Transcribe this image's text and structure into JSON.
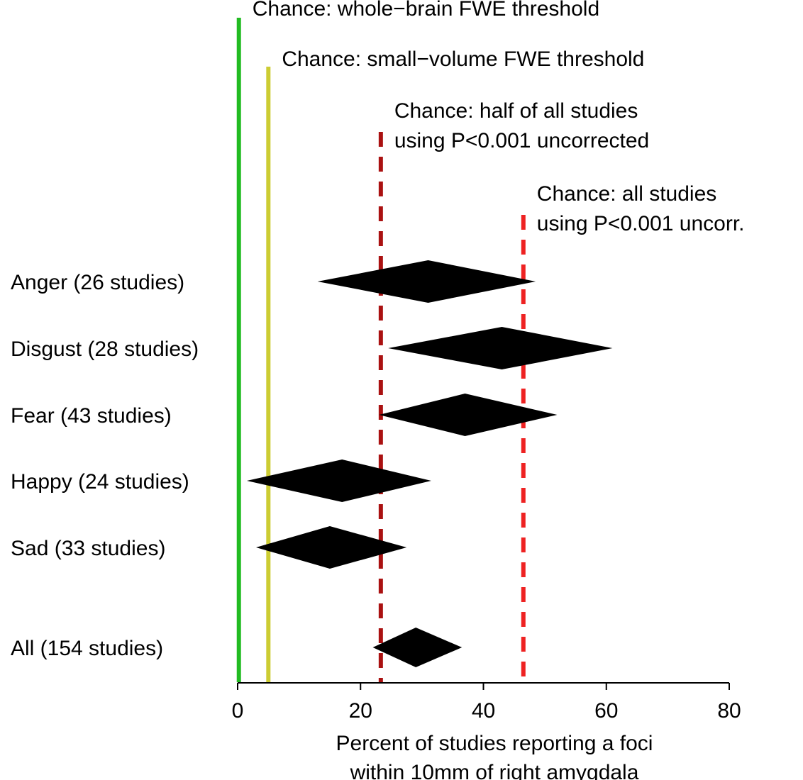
{
  "chart_data": {
    "type": "forest",
    "xlabel": [
      "Percent of studies reporting a foci",
      "within 10mm of right amygdala"
    ],
    "xlim": [
      0,
      80
    ],
    "xticks": [
      0,
      20,
      40,
      60,
      80
    ],
    "categories": [
      "Anger (26 studies)",
      "Disgust (28 studies)",
      "Fear (43 studies)",
      "Happy (24 studies)",
      "Sad (33 studies)",
      "All (154 studies)"
    ],
    "estimates": [
      {
        "label": "Anger (26 studies)",
        "estimate": 31,
        "ci_low": 13,
        "ci_high": 48.5
      },
      {
        "label": "Disgust (28 studies)",
        "estimate": 43,
        "ci_low": 24.5,
        "ci_high": 61
      },
      {
        "label": "Fear (43 studies)",
        "estimate": 37,
        "ci_low": 23,
        "ci_high": 52
      },
      {
        "label": "Happy (24 studies)",
        "estimate": 17,
        "ci_low": 1.5,
        "ci_high": 31.5
      },
      {
        "label": "Sad (33 studies)",
        "estimate": 15,
        "ci_low": 3,
        "ci_high": 27.5
      },
      {
        "label": "All (154 studies)",
        "estimate": 29,
        "ci_low": 22,
        "ci_high": 36.5
      }
    ],
    "reference_lines": [
      {
        "value": 0.2,
        "label": [
          "Chance: whole−brain FWE threshold"
        ],
        "color": "#22bb22",
        "style": "solid"
      },
      {
        "value": 5,
        "label": [
          "Chance: small−volume FWE threshold"
        ],
        "color": "#cccc33",
        "style": "solid"
      },
      {
        "value": 23.3,
        "label": [
          "Chance: half of all studies",
          "using P<0.001 uncorrected"
        ],
        "color": "#aa1111",
        "style": "dashed"
      },
      {
        "value": 46.5,
        "label": [
          "Chance: all studies",
          "using P<0.001 uncorr."
        ],
        "color": "#ee2222",
        "style": "dashed"
      }
    ]
  }
}
